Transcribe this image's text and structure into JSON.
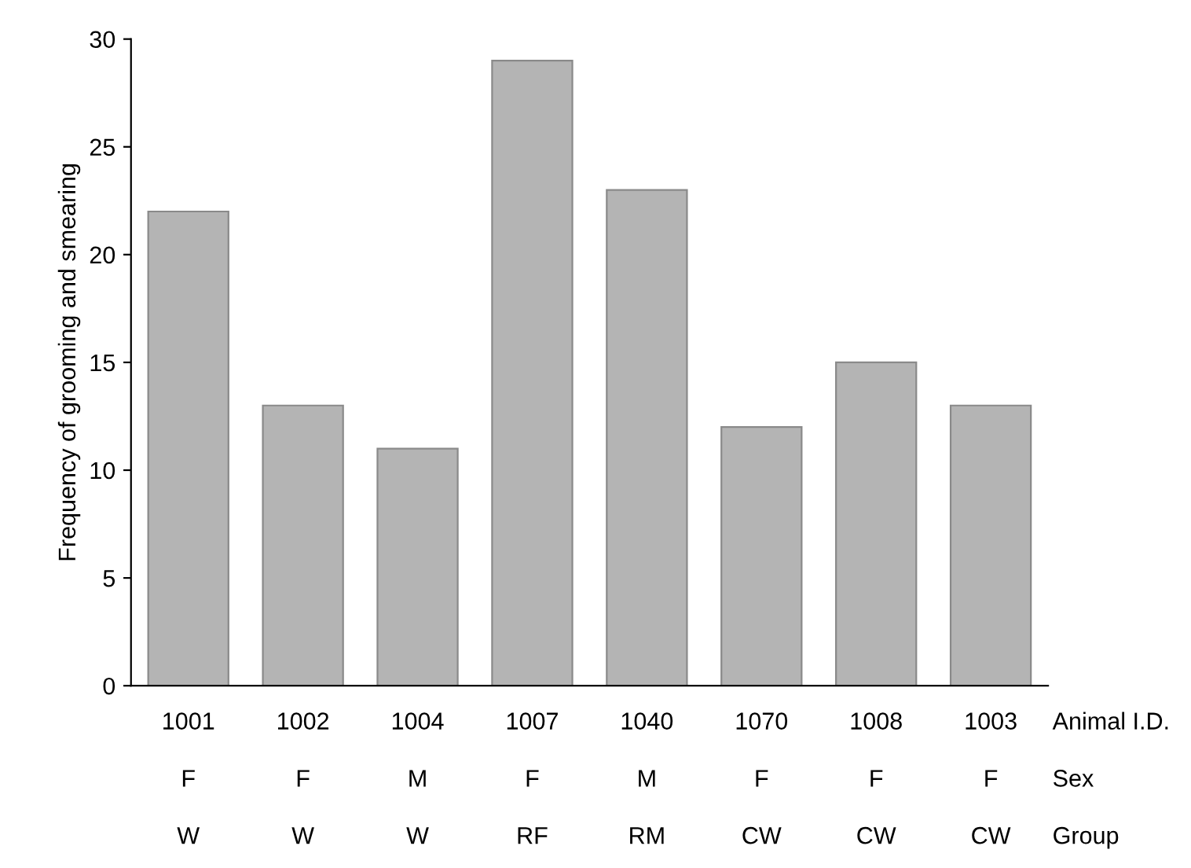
{
  "chart_data": {
    "type": "bar",
    "ylabel": "Frequency of grooming and smearing",
    "categories": [
      "1001\nF\nW",
      "1002\nF\nW",
      "1004\nM\nW",
      "1007\nF\nRF",
      "1040\nM\nRM",
      "1070\nF\nCW",
      "1008\nF\nCW",
      "1003\nF\nCW"
    ],
    "values": [
      22,
      13,
      11,
      29,
      23,
      12,
      15,
      13
    ],
    "color": "#b4b4b4",
    "ylim": [
      0,
      30
    ],
    "yticks": [
      0,
      5,
      10,
      15,
      20,
      25,
      30
    ],
    "grid": false,
    "legend": false,
    "annotations": [
      "Animal I.D.\nSex\nGroup"
    ]
  }
}
